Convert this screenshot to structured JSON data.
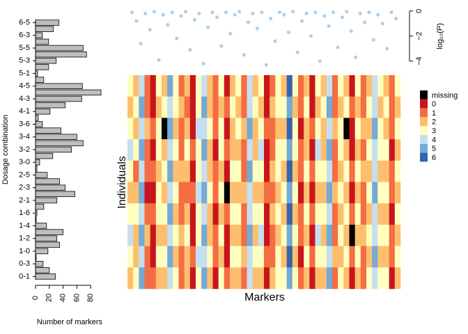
{
  "chart_data": [
    {
      "type": "bar",
      "orientation": "horizontal",
      "xlabel": "Number of markers",
      "ylabel": "Dosage combination",
      "color": "#bebebe",
      "categories": [
        "0-1",
        null,
        "0-3",
        null,
        "1-0",
        null,
        "1-2",
        null,
        "1-4",
        null,
        "1-6",
        null,
        "2-1",
        null,
        "2-3",
        null,
        "2-5",
        null,
        "3-0",
        null,
        "3-2",
        null,
        "3-4",
        null,
        "3-6",
        null,
        "4-1",
        null,
        "4-3",
        null,
        "4-5",
        null,
        "5-1",
        null,
        "5-3",
        null,
        "5-5",
        null,
        "6-3",
        null,
        "6-5"
      ],
      "values": [
        29,
        20,
        11,
        1,
        18,
        35,
        31,
        40,
        16,
        1,
        2,
        12,
        31,
        57,
        43,
        35,
        17,
        2,
        6,
        25,
        52,
        69,
        60,
        37,
        10,
        4,
        21,
        43,
        67,
        95,
        68,
        12,
        3,
        19,
        30,
        74,
        69,
        19,
        10,
        26,
        34
      ],
      "xlim": [
        0,
        100
      ],
      "xticks": [
        0,
        20,
        40,
        60,
        80
      ]
    },
    {
      "type": "scatter",
      "ylabel": "log₁₀(P)",
      "color": "#4a98d8",
      "x": [
        1,
        2,
        3,
        4,
        5,
        6,
        7,
        8,
        9,
        10,
        11,
        12,
        13,
        14,
        15,
        16,
        17,
        18,
        19,
        20,
        21,
        22,
        23,
        24,
        25,
        26,
        27,
        28,
        29,
        30,
        31,
        32,
        33,
        34,
        35,
        36,
        37,
        38,
        39,
        40,
        41,
        42,
        43,
        44,
        45,
        46,
        47,
        48,
        49,
        50,
        51,
        52,
        53,
        54,
        55,
        56,
        57,
        58,
        59,
        60
      ],
      "y": [
        -0.1,
        -0.8,
        -2.6,
        -0.2,
        -1.5,
        -0.05,
        -3.9,
        -0.3,
        -1.1,
        -0.1,
        -2.2,
        -0.4,
        -0.05,
        -3.1,
        -0.7,
        -0.2,
        -4.2,
        -1.3,
        -0.1,
        -0.5,
        -2.8,
        -0.1,
        -1.8,
        -0.3,
        -0.05,
        -3.5,
        -0.9,
        -0.2,
        -1.4,
        -0.1,
        -4.3,
        -0.6,
        -2.4,
        -0.1,
        -0.3,
        -1.7,
        -0.05,
        -3.3,
        -0.8,
        -0.2,
        -2.0,
        -0.1,
        -4.0,
        -0.4,
        -1.2,
        -0.1,
        -2.9,
        -0.5,
        -0.05,
        -1.6,
        -3.7,
        -0.2,
        -0.9,
        -0.1,
        -2.3,
        -0.3,
        -1.0,
        -3.0,
        -0.1,
        -0.6
      ],
      "xlim": [
        0,
        61
      ],
      "ylim": [
        -4.4,
        0.1
      ],
      "yticks": [
        {
          "value": 0,
          "label": "0"
        },
        {
          "value": -2,
          "label": "−2"
        },
        {
          "value": -4,
          "label": "−4"
        }
      ]
    },
    {
      "type": "heatmap",
      "xlabel": "Markers",
      "ylabel": "Individuals",
      "legend_labels": [
        "missing",
        "0",
        "1",
        "2",
        "3",
        "4",
        "5",
        "6"
      ],
      "colors": [
        "#000000",
        "#c8151c",
        "#f46d43",
        "#fdbf6f",
        "#ffffbf",
        "#c6dff0",
        "#74a9d8",
        "#3563ad"
      ],
      "matrix": [
        [
          3,
          2,
          4,
          1,
          0,
          3,
          2,
          5,
          3,
          1,
          2,
          0,
          3,
          4,
          2,
          1,
          3,
          0,
          2,
          3,
          1,
          4,
          2,
          3,
          0,
          1,
          3,
          2,
          6,
          3,
          1,
          2,
          0,
          3,
          2,
          4,
          1,
          3,
          2,
          0,
          3,
          1,
          2,
          4,
          3,
          2,
          1,
          3
        ],
        [
          2,
          3,
          5,
          1,
          0,
          2,
          3,
          4,
          3,
          2,
          1,
          0,
          3,
          5,
          2,
          1,
          2,
          1,
          3,
          2,
          1,
          4,
          3,
          2,
          0,
          2,
          3,
          3,
          5,
          2,
          1,
          3,
          0,
          2,
          3,
          5,
          1,
          2,
          3,
          1,
          2,
          1,
          3,
          4,
          2,
          3,
          1,
          2
        ],
        [
          3,
          2,
          4,
          2,
          1,
          3,
          null,
          5,
          2,
          1,
          2,
          0,
          4,
          4,
          3,
          1,
          3,
          0,
          2,
          3,
          2,
          5,
          2,
          3,
          1,
          1,
          2,
          2,
          6,
          3,
          0,
          2,
          1,
          3,
          2,
          4,
          2,
          3,
          null,
          0,
          3,
          2,
          2,
          5,
          3,
          2,
          1,
          3
        ],
        [
          4,
          3,
          5,
          1,
          0,
          3,
          2,
          4,
          3,
          1,
          3,
          1,
          3,
          5,
          2,
          0,
          3,
          1,
          2,
          2,
          1,
          4,
          2,
          4,
          0,
          1,
          3,
          3,
          5,
          3,
          1,
          2,
          0,
          4,
          2,
          5,
          1,
          3,
          2,
          0,
          2,
          1,
          3,
          4,
          3,
          3,
          0,
          2
        ],
        [
          3,
          1,
          4,
          1,
          1,
          2,
          3,
          5,
          2,
          2,
          2,
          0,
          3,
          4,
          2,
          1,
          2,
          0,
          3,
          3,
          1,
          5,
          3,
          3,
          0,
          2,
          3,
          2,
          6,
          2,
          1,
          3,
          1,
          3,
          3,
          4,
          1,
          2,
          3,
          1,
          3,
          2,
          2,
          4,
          2,
          2,
          1,
          3
        ],
        [
          2,
          2,
          5,
          0,
          0,
          3,
          2,
          4,
          3,
          1,
          1,
          1,
          4,
          5,
          3,
          1,
          3,
          null,
          2,
          2,
          2,
          4,
          2,
          2,
          1,
          1,
          2,
          3,
          5,
          3,
          0,
          2,
          0,
          2,
          2,
          5,
          2,
          3,
          2,
          0,
          2,
          1,
          3,
          5,
          3,
          3,
          1,
          2
        ],
        [
          3,
          3,
          4,
          1,
          1,
          3,
          3,
          5,
          2,
          1,
          2,
          0,
          3,
          4,
          2,
          0,
          2,
          1,
          3,
          3,
          1,
          4,
          3,
          3,
          0,
          2,
          3,
          2,
          6,
          2,
          1,
          3,
          1,
          3,
          3,
          4,
          1,
          2,
          3,
          1,
          3,
          1,
          2,
          4,
          2,
          2,
          0,
          3
        ],
        [
          4,
          2,
          5,
          2,
          0,
          2,
          2,
          4,
          3,
          2,
          3,
          0,
          3,
          5,
          2,
          1,
          3,
          0,
          2,
          2,
          1,
          5,
          2,
          4,
          0,
          1,
          2,
          3,
          5,
          3,
          1,
          2,
          0,
          4,
          2,
          5,
          1,
          3,
          2,
          null,
          2,
          2,
          3,
          4,
          3,
          3,
          1,
          2
        ],
        [
          3,
          2,
          4,
          1,
          0,
          3,
          3,
          5,
          2,
          1,
          2,
          1,
          4,
          4,
          3,
          1,
          2,
          0,
          3,
          3,
          2,
          4,
          3,
          3,
          1,
          1,
          3,
          2,
          6,
          2,
          0,
          3,
          1,
          3,
          3,
          4,
          2,
          2,
          3,
          1,
          3,
          1,
          2,
          5,
          2,
          2,
          1,
          3
        ],
        [
          2,
          3,
          5,
          1,
          1,
          2,
          2,
          4,
          3,
          1,
          2,
          0,
          3,
          5,
          2,
          0,
          3,
          1,
          2,
          2,
          1,
          4,
          2,
          2,
          0,
          2,
          3,
          3,
          5,
          3,
          1,
          2,
          0,
          2,
          2,
          5,
          1,
          3,
          2,
          0,
          2,
          1,
          3,
          4,
          3,
          3,
          0,
          2
        ]
      ]
    }
  ]
}
